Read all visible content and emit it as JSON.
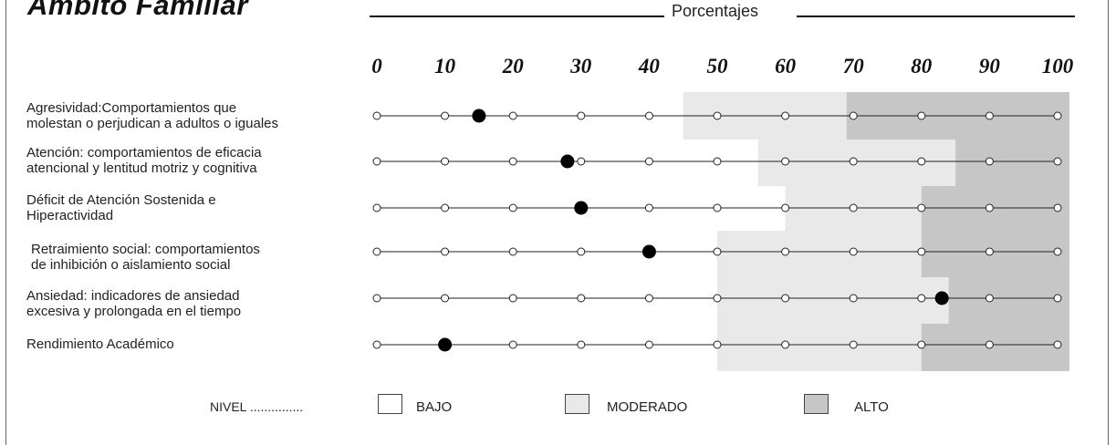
{
  "title": "Ámbito  Familiar",
  "axis_title": "Porcentajes",
  "legend": {
    "title": "NIVEL ...............",
    "items": [
      {
        "label": "BAJO",
        "color": "#ffffff"
      },
      {
        "label": "MODERADO",
        "color": "#e9e9e9"
      },
      {
        "label": "ALTO",
        "color": "#c6c6c6"
      }
    ]
  },
  "colors": {
    "bajo": "#ffffff",
    "moderado": "#e9e9e9",
    "alto": "#c6c6c6",
    "marker": "#000000"
  },
  "chart_data": {
    "type": "scatter",
    "title": "Ámbito  Familiar",
    "xlabel": "Porcentajes",
    "xlim": [
      0,
      100
    ],
    "xticks": [
      0,
      10,
      20,
      30,
      40,
      50,
      60,
      70,
      80,
      90,
      100
    ],
    "tick_labels": [
      "0",
      "10",
      "20",
      "30",
      "40",
      "50",
      "60",
      "70",
      "80",
      "90",
      "100"
    ],
    "rows": [
      {
        "label_lines": [
          "Agresividad:Comportamientos que",
          "molestan o perjudican a adultos o iguales"
        ],
        "value": 15,
        "moderado_from": 45,
        "alto_from": 69
      },
      {
        "label_lines": [
          "Atención: comportamientos de eficacia",
          "atencional y lentitud motriz y cognitiva"
        ],
        "value": 28,
        "moderado_from": 56,
        "alto_from": 85
      },
      {
        "label_lines": [
          "Déficit de Atención Sostenida e",
          "Hiperactividad"
        ],
        "value": 30,
        "moderado_from": 60,
        "alto_from": 80
      },
      {
        "label_lines": [
          "Retraimiento social: comportamientos",
          "de inhibición o aislamiento social"
        ],
        "value": 40,
        "moderado_from": 50,
        "alto_from": 80
      },
      {
        "label_lines": [
          "Ansiedad: indicadores de ansiedad",
          "excesiva y prolongada en el tiempo"
        ],
        "value": 83,
        "moderado_from": 50,
        "alto_from": 84
      },
      {
        "label_lines": [
          "Rendimiento Académico"
        ],
        "value": 10,
        "moderado_from": 50,
        "alto_from": 80
      }
    ]
  }
}
